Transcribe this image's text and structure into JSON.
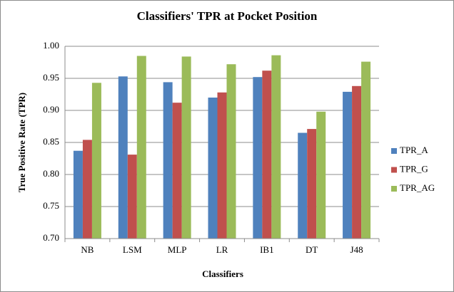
{
  "chart_data": {
    "type": "bar",
    "title": "Classifiers' TPR at Pocket Position",
    "xlabel": "Classifiers",
    "ylabel": "True Positive Rate (TPR)",
    "categories": [
      "NB",
      "LSM",
      "MLP",
      "LR",
      "IB1",
      "DT",
      "J48"
    ],
    "series": [
      {
        "name": "TPR_A",
        "color": "#4f81bd",
        "values": [
          0.837,
          0.953,
          0.944,
          0.92,
          0.952,
          0.865,
          0.929
        ]
      },
      {
        "name": "TPR_G",
        "color": "#c0504d",
        "values": [
          0.854,
          0.831,
          0.912,
          0.928,
          0.962,
          0.871,
          0.938
        ]
      },
      {
        "name": "TPR_AG",
        "color": "#9bbb59",
        "values": [
          0.943,
          0.985,
          0.984,
          0.972,
          0.986,
          0.898,
          0.976
        ]
      }
    ],
    "ylim": [
      0.7,
      1.0
    ],
    "yticks": [
      {
        "value": 0.7,
        "label": "0.70"
      },
      {
        "value": 0.75,
        "label": "0.75"
      },
      {
        "value": 0.8,
        "label": "0.80"
      },
      {
        "value": 0.85,
        "label": "0.85"
      },
      {
        "value": 0.9,
        "label": "0.90"
      },
      {
        "value": 0.95,
        "label": "0.95"
      },
      {
        "value": 1.0,
        "label": "1.00"
      }
    ],
    "grid": true,
    "legend": "right"
  }
}
